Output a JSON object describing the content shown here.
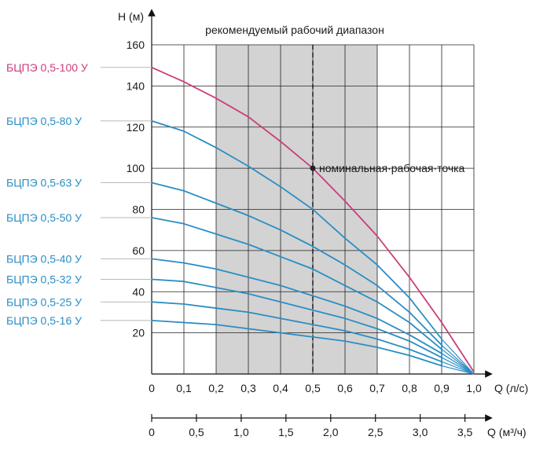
{
  "chart_data": {
    "type": "line",
    "title": "рекомендуемый рабочий диапазон",
    "ylabel": "H (м)",
    "xlabel": "Q (л/с)",
    "x2label": "Q (м³/ч)",
    "xlim": [
      0,
      1.0
    ],
    "ylim": [
      0,
      160
    ],
    "x_ticks": [
      "0",
      "0,1",
      "0,2",
      "0,3",
      "0,4",
      "0,5",
      "0,6",
      "0,7",
      "0,8",
      "0,9",
      "1,0"
    ],
    "y_ticks": [
      "20",
      "40",
      "60",
      "80",
      "100",
      "120",
      "140",
      "160"
    ],
    "x2_ticks": [
      "0",
      "0,5",
      "1,0",
      "1,5",
      "2,0",
      "2,5",
      "3,0",
      "3,5"
    ],
    "x2_tick_values": [
      0,
      0.5,
      1.0,
      1.5,
      2.0,
      2.5,
      3.0,
      3.5
    ],
    "recommended_range": [
      0.2,
      0.7
    ],
    "nominal_point": {
      "x": 0.5,
      "y": 100,
      "label": "номинальная·рабочая·точка"
    },
    "colors": {
      "pink": "#cc3c7a",
      "blue": "#2a8ec4",
      "shade": "#d3d3d3"
    },
    "series": [
      {
        "name": "БЦПЭ 0,5-100 У",
        "color": "pink",
        "x": [
          0,
          0.1,
          0.2,
          0.3,
          0.4,
          0.5,
          0.6,
          0.7,
          0.8,
          0.9,
          1.0
        ],
        "y": [
          149,
          142,
          134,
          125,
          113,
          100,
          84,
          67,
          47,
          25,
          1
        ]
      },
      {
        "name": "БЦПЭ 0,5-80 У",
        "color": "blue",
        "x": [
          0,
          0.1,
          0.2,
          0.3,
          0.4,
          0.5,
          0.6,
          0.7,
          0.8,
          0.9
        ],
        "y": [
          123,
          118,
          110,
          101,
          91,
          80,
          66,
          53,
          37,
          17
        ]
      },
      {
        "name": "БЦПЭ 0,5-63 У",
        "color": "blue",
        "x": [
          0,
          0.1,
          0.2,
          0.3,
          0.4,
          0.5,
          0.6,
          0.7,
          0.8,
          0.9
        ],
        "y": [
          93,
          89,
          83,
          77,
          70,
          62,
          53,
          43,
          30,
          14
        ]
      },
      {
        "name": "БЦПЭ 0,5-50 У",
        "color": "blue",
        "x": [
          0,
          0.1,
          0.2,
          0.3,
          0.4,
          0.5,
          0.6,
          0.7,
          0.8,
          0.9
        ],
        "y": [
          76,
          73,
          68,
          63,
          57,
          51,
          43,
          35,
          25,
          12
        ]
      },
      {
        "name": "БЦПЭ 0,5-40 У",
        "color": "blue",
        "x": [
          0,
          0.1,
          0.2,
          0.3,
          0.4,
          0.5,
          0.6,
          0.7,
          0.8,
          0.9
        ],
        "y": [
          56,
          54,
          51,
          47,
          43,
          38,
          33,
          27,
          19,
          10
        ]
      },
      {
        "name": "БЦПЭ 0,5-32 У",
        "color": "blue",
        "x": [
          0,
          0.1,
          0.2,
          0.3,
          0.4,
          0.5,
          0.6,
          0.7,
          0.8,
          0.9
        ],
        "y": [
          46,
          45,
          42,
          39,
          35,
          31,
          27,
          22,
          16,
          8
        ]
      },
      {
        "name": "БЦПЭ 0,5-25 У",
        "color": "blue",
        "x": [
          0,
          0.1,
          0.2,
          0.3,
          0.4,
          0.5,
          0.6,
          0.7,
          0.8,
          0.9
        ],
        "y": [
          35,
          34,
          32,
          30,
          27,
          24,
          21,
          17,
          12,
          6
        ]
      },
      {
        "name": "БЦПЭ 0,5-16 У",
        "color": "blue",
        "x": [
          0,
          0.1,
          0.2,
          0.3,
          0.4,
          0.5,
          0.6,
          0.7,
          0.8,
          0.9
        ],
        "y": [
          26,
          25,
          24,
          22,
          20,
          18,
          16,
          13,
          9,
          4
        ]
      }
    ]
  }
}
